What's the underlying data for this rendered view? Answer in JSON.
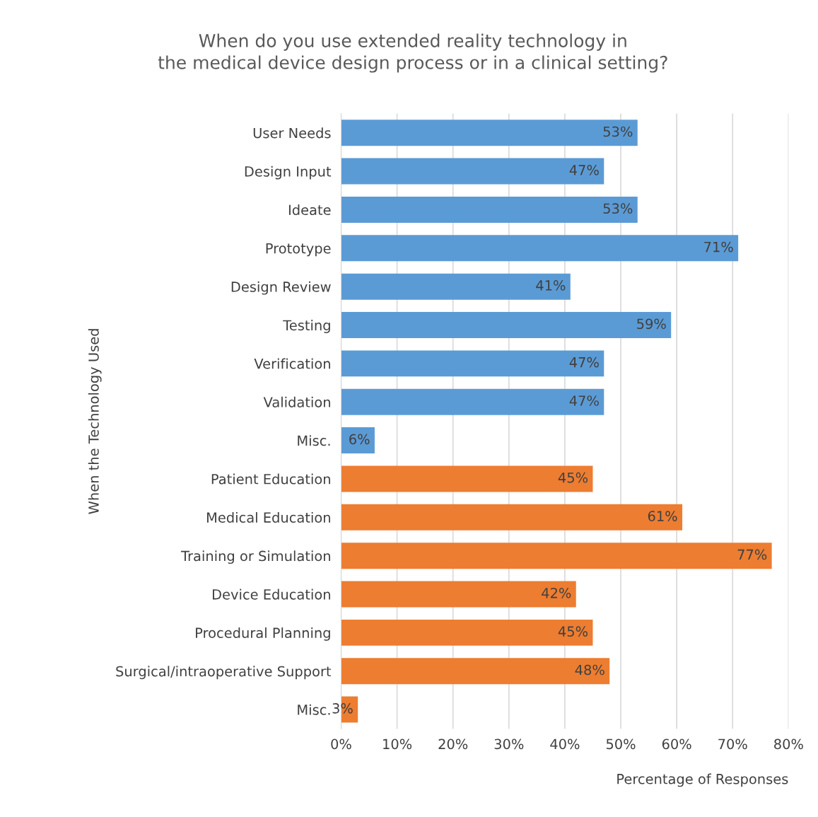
{
  "chart_data": {
    "type": "bar",
    "orientation": "horizontal",
    "title": "When do you use extended reality technology in\nthe medical device design process or in a clinical setting?",
    "xlabel": "Percentage of Responses",
    "ylabel": "When the Technology Used",
    "categories": [
      "User Needs",
      "Design Input",
      "Ideate",
      "Prototype",
      "Design Review",
      "Testing",
      "Verification",
      "Validation",
      "Misc.",
      "Patient Education",
      "Medical Education",
      "Training or Simulation",
      "Device Education",
      "Procedural Planning",
      "Surgical/intraoperative Support",
      "Misc."
    ],
    "values": [
      53,
      47,
      53,
      71,
      41,
      59,
      47,
      47,
      6,
      45,
      61,
      77,
      42,
      45,
      48,
      3
    ],
    "colors": [
      "#5b9bd5",
      "#5b9bd5",
      "#5b9bd5",
      "#5b9bd5",
      "#5b9bd5",
      "#5b9bd5",
      "#5b9bd5",
      "#5b9bd5",
      "#5b9bd5",
      "#ed7d31",
      "#ed7d31",
      "#ed7d31",
      "#ed7d31",
      "#ed7d31",
      "#ed7d31",
      "#ed7d31"
    ],
    "value_labels": [
      "53%",
      "47%",
      "53%",
      "71%",
      "41%",
      "59%",
      "47%",
      "47%",
      "6%",
      "45%",
      "61%",
      "77%",
      "42%",
      "45%",
      "48%",
      "3%"
    ],
    "xlim": [
      0,
      80
    ],
    "xticks": [
      {
        "value": 0,
        "label": "0%"
      },
      {
        "value": 10,
        "label": "10%"
      },
      {
        "value": 20,
        "label": "20%"
      },
      {
        "value": 30,
        "label": "30%"
      },
      {
        "value": 40,
        "label": "40%"
      },
      {
        "value": 50,
        "label": "50%"
      },
      {
        "value": 60,
        "label": "60%"
      },
      {
        "value": 70,
        "label": "70%"
      },
      {
        "value": 80,
        "label": "80%"
      }
    ],
    "grid": "x",
    "legend": false
  }
}
